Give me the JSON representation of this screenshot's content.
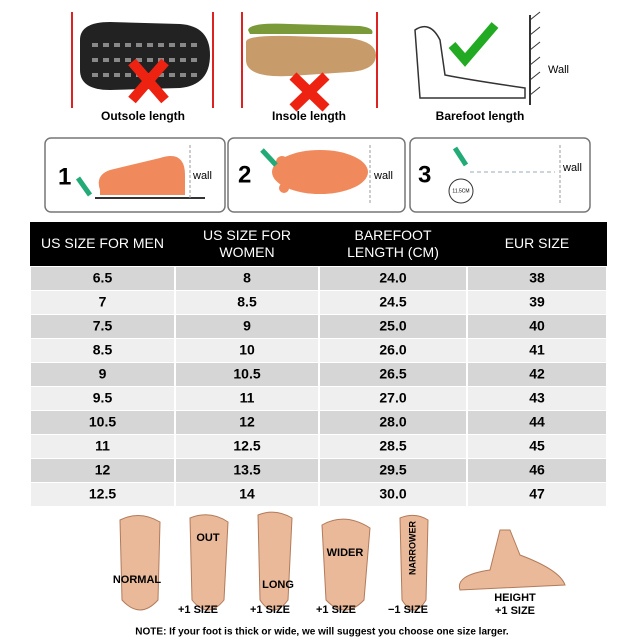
{
  "top_images": [
    {
      "caption": "Outsole length"
    },
    {
      "caption": "Insole length"
    },
    {
      "caption": "Barefoot length",
      "label": "Wall"
    }
  ],
  "steps": [
    {
      "number": "1",
      "label": "wall"
    },
    {
      "number": "2",
      "label": "wall"
    },
    {
      "number": "3",
      "label": "wall",
      "measure": "11.5CM"
    }
  ],
  "table": {
    "header": [
      "US SIZE FOR MEN",
      "US SIZE FOR WOMEN",
      "BAREFOOT LENGTH (CM)",
      "EUR SIZE"
    ],
    "rows": [
      [
        "6.5",
        "8",
        "24.0",
        "38"
      ],
      [
        "7",
        "8.5",
        "24.5",
        "39"
      ],
      [
        "7.5",
        "9",
        "25.0",
        "40"
      ],
      [
        "8.5",
        "10",
        "26.0",
        "41"
      ],
      [
        "9",
        "10.5",
        "26.5",
        "42"
      ],
      [
        "9.5",
        "11",
        "27.0",
        "43"
      ],
      [
        "10.5",
        "12",
        "28.0",
        "44"
      ],
      [
        "11",
        "12.5",
        "28.5",
        "45"
      ],
      [
        "12",
        "13.5",
        "29.5",
        "46"
      ],
      [
        "12.5",
        "14",
        "30.0",
        "47"
      ]
    ]
  },
  "foot_types": [
    {
      "label": "NORMAL"
    },
    {
      "label": "OUT",
      "size": "+1 SIZE"
    },
    {
      "label": "LONG",
      "size": "+1 SIZE"
    },
    {
      "label": "WIDER",
      "size": "+1 SIZE"
    },
    {
      "label": "NARROWER",
      "size": "−1 SIZE"
    },
    {
      "label": "HEIGHT",
      "size": "+1 SIZE"
    }
  ],
  "note": "NOTE: If your foot is thick or wide, we will suggest you choose one size larger."
}
